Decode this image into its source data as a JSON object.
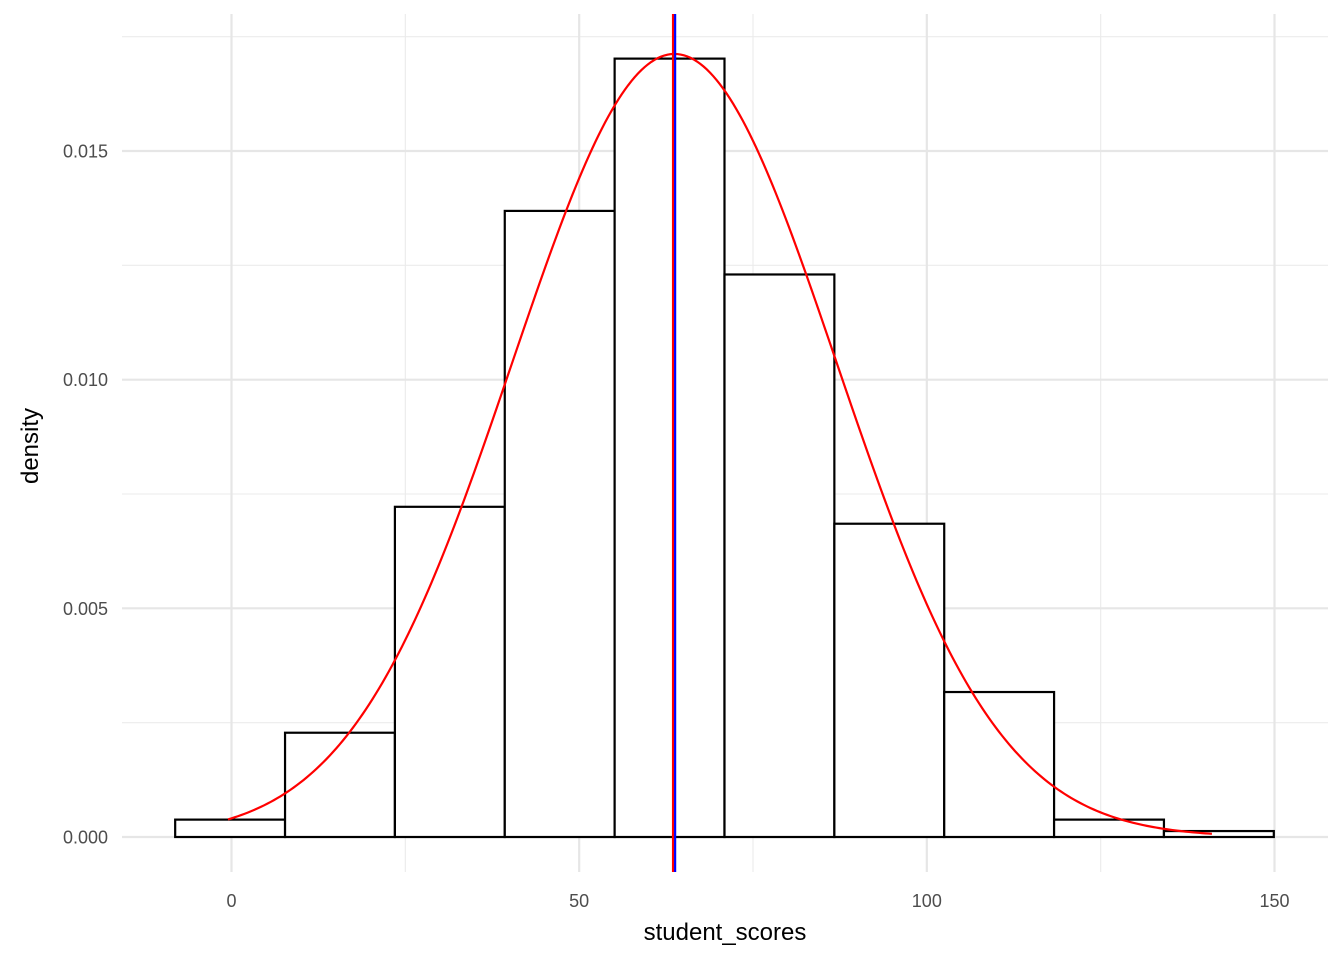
{
  "chart_data": {
    "type": "bar",
    "xlabel": "student_scores",
    "ylabel": "density",
    "xlim": [
      -8.2,
      160
    ],
    "ylim": [
      -0.00085,
      0.01795
    ],
    "x_ticks": [
      0,
      50,
      100,
      150
    ],
    "x_tick_labels": [
      "0",
      "50",
      "100",
      "150"
    ],
    "x_minor_ticks": [
      25,
      75,
      125
    ],
    "y_ticks": [
      0,
      0.005,
      0.01,
      0.015
    ],
    "y_tick_labels": [
      "0.000",
      "0.005",
      "0.010",
      "0.015"
    ],
    "y_minor_ticks": [
      0.0025,
      0.0075,
      0.0125,
      0.0175
    ],
    "grid": true,
    "histogram": {
      "bin_edges": [
        -8.1,
        7.7,
        23.5,
        39.3,
        55.1,
        70.9,
        86.7,
        102.5,
        118.3,
        134.1,
        149.9
      ],
      "densities": [
        0.00038,
        0.00228,
        0.00722,
        0.01369,
        0.01702,
        0.0123,
        0.00685,
        0.00317,
        0.00038,
        0.00013
      ],
      "fill": "#ffffff",
      "edge_color": "#000000"
    },
    "normal_curve": {
      "mean": 63.7,
      "sd": 23.3,
      "x_range": [
        -0.5,
        141
      ],
      "color": "#ff0000"
    },
    "vlines": [
      {
        "x": 63.5,
        "color": "#ff0000"
      },
      {
        "x": 63.8,
        "color": "#0000ff"
      }
    ]
  }
}
